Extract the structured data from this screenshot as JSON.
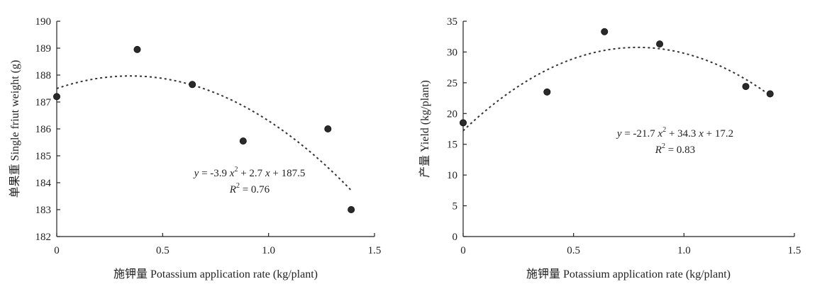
{
  "chart_data": [
    {
      "type": "scatter",
      "xlabel": "施钾量 Potassium application rate (kg/plant)",
      "ylabel": "单果重 Single friut weight (g)",
      "xlim": [
        0,
        1.5
      ],
      "ylim": [
        182,
        190
      ],
      "xticks": [
        "0",
        "0.5",
        "1.0",
        "1.5"
      ],
      "yticks": [
        "182",
        "183",
        "184",
        "185",
        "186",
        "187",
        "188",
        "189",
        "190"
      ],
      "x": [
        0,
        0.38,
        0.64,
        0.88,
        1.28,
        1.39
      ],
      "y": [
        187.2,
        188.95,
        187.65,
        185.55,
        186.0,
        183.0
      ],
      "fit": {
        "a": -3.9,
        "b": 2.7,
        "c": 187.5
      },
      "equation": {
        "y": "y",
        "rest": " = -3.9 ",
        "x2": "x",
        "sup2": "2",
        "mid": " + 2.7 ",
        "x1": "x",
        "tail": " + 187.5"
      },
      "r2": {
        "R": "R",
        "sup": "2",
        "value": " = 0.76"
      },
      "grid": false
    },
    {
      "type": "scatter",
      "xlabel": "施钾量 Potassium application rate (kg/plant)",
      "ylabel": "产量 Yield (kg/plant)",
      "xlim": [
        0,
        1.5
      ],
      "ylim": [
        0,
        35
      ],
      "xticks": [
        "0",
        "0.5",
        "1.0",
        "1.5"
      ],
      "yticks": [
        "0",
        "5",
        "10",
        "15",
        "20",
        "25",
        "30",
        "35"
      ],
      "x": [
        0,
        0.38,
        0.64,
        0.89,
        1.28,
        1.39
      ],
      "y": [
        18.5,
        23.5,
        33.3,
        31.3,
        24.4,
        23.2
      ],
      "fit": {
        "a": -21.7,
        "b": 34.3,
        "c": 17.2
      },
      "equation": {
        "y": "y",
        "rest": " = -21.7 ",
        "x2": "x",
        "sup2": "2",
        "mid": " + 34.3 ",
        "x1": "x",
        "tail": " + 17.2"
      },
      "r2": {
        "R": "R",
        "sup": "2",
        "value": " = 0.83"
      },
      "grid": false
    }
  ]
}
